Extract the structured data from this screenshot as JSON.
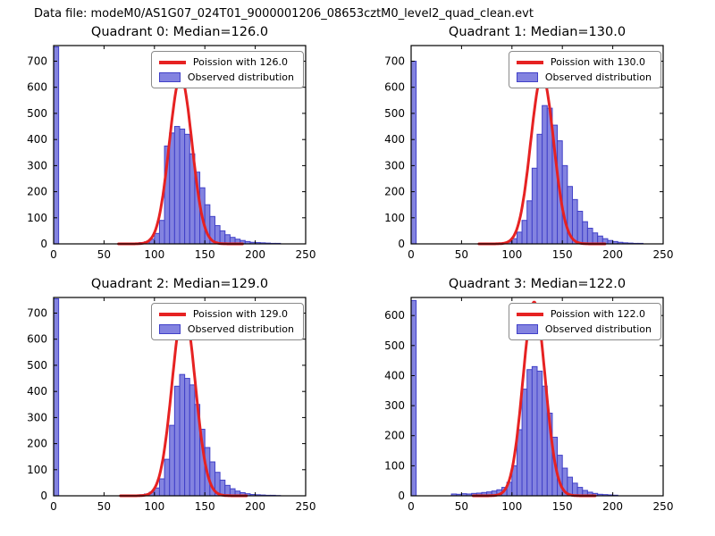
{
  "figure_title": "Data file: modeM0/AS1G07_024T01_9000001206_08653cztM0_level2_quad_clean.evt",
  "colors": {
    "bar_fill": "#8383e0",
    "bar_edge": "#4040c8",
    "curve": "#e62222",
    "axis": "#000000"
  },
  "chart_data": {
    "type": "bar",
    "note": "2x2 grid of histograms (Observed distribution) with Poisson fit curve overlaid",
    "x_ticks": [
      0,
      50,
      100,
      150,
      200,
      250
    ],
    "subplots": [
      {
        "title": "Quadrant 0: Median=126.0",
        "median": 126.0,
        "legend": {
          "line": "Poission with 126.0",
          "patch": "Observed distribution"
        },
        "xlim": [
          0,
          250
        ],
        "ylim": [
          0,
          760
        ],
        "y_ticks": [
          0,
          100,
          200,
          300,
          400,
          500,
          600,
          700
        ],
        "bin_width": 5,
        "bars": [
          [
            0,
            755
          ],
          [
            75,
            2
          ],
          [
            80,
            3
          ],
          [
            85,
            5
          ],
          [
            90,
            8
          ],
          [
            95,
            18
          ],
          [
            100,
            40
          ],
          [
            105,
            90
          ],
          [
            110,
            375
          ],
          [
            115,
            425
          ],
          [
            120,
            450
          ],
          [
            125,
            440
          ],
          [
            130,
            420
          ],
          [
            135,
            345
          ],
          [
            140,
            275
          ],
          [
            145,
            215
          ],
          [
            150,
            150
          ],
          [
            155,
            105
          ],
          [
            160,
            70
          ],
          [
            165,
            50
          ],
          [
            170,
            35
          ],
          [
            175,
            25
          ],
          [
            180,
            18
          ],
          [
            185,
            13
          ],
          [
            190,
            9
          ],
          [
            195,
            6
          ],
          [
            200,
            5
          ],
          [
            205,
            4
          ],
          [
            210,
            3
          ],
          [
            215,
            2
          ],
          [
            220,
            2
          ]
        ],
        "curve": {
          "mu": 126,
          "sigma": 11.2,
          "peak": 640
        }
      },
      {
        "title": "Quadrant 1: Median=130.0",
        "median": 130.0,
        "legend": {
          "line": "Poission with 130.0",
          "patch": "Observed distribution"
        },
        "xlim": [
          0,
          250
        ],
        "ylim": [
          0,
          760
        ],
        "y_ticks": [
          0,
          100,
          200,
          300,
          400,
          500,
          600,
          700
        ],
        "bin_width": 5,
        "bars": [
          [
            0,
            700
          ],
          [
            90,
            4
          ],
          [
            95,
            8
          ],
          [
            100,
            20
          ],
          [
            105,
            45
          ],
          [
            110,
            90
          ],
          [
            115,
            165
          ],
          [
            120,
            290
          ],
          [
            125,
            420
          ],
          [
            130,
            530
          ],
          [
            135,
            520
          ],
          [
            140,
            455
          ],
          [
            145,
            395
          ],
          [
            150,
            300
          ],
          [
            155,
            220
          ],
          [
            160,
            170
          ],
          [
            165,
            125
          ],
          [
            170,
            85
          ],
          [
            175,
            60
          ],
          [
            180,
            42
          ],
          [
            185,
            30
          ],
          [
            190,
            20
          ],
          [
            195,
            13
          ],
          [
            200,
            9
          ],
          [
            205,
            6
          ],
          [
            210,
            4
          ],
          [
            215,
            3
          ],
          [
            220,
            2
          ],
          [
            225,
            2
          ]
        ],
        "curve": {
          "mu": 130,
          "sigma": 11.4,
          "peak": 645
        }
      },
      {
        "title": "Quadrant 2: Median=129.0",
        "median": 129.0,
        "legend": {
          "line": "Poission with 129.0",
          "patch": "Observed distribution"
        },
        "xlim": [
          0,
          250
        ],
        "ylim": [
          0,
          760
        ],
        "y_ticks": [
          0,
          100,
          200,
          300,
          400,
          500,
          600,
          700
        ],
        "bin_width": 5,
        "bars": [
          [
            0,
            755
          ],
          [
            80,
            2
          ],
          [
            85,
            4
          ],
          [
            90,
            7
          ],
          [
            95,
            14
          ],
          [
            100,
            30
          ],
          [
            105,
            65
          ],
          [
            110,
            140
          ],
          [
            115,
            270
          ],
          [
            120,
            420
          ],
          [
            125,
            465
          ],
          [
            130,
            450
          ],
          [
            135,
            425
          ],
          [
            140,
            350
          ],
          [
            145,
            255
          ],
          [
            150,
            185
          ],
          [
            155,
            130
          ],
          [
            160,
            90
          ],
          [
            165,
            60
          ],
          [
            170,
            40
          ],
          [
            175,
            27
          ],
          [
            180,
            18
          ],
          [
            185,
            12
          ],
          [
            190,
            8
          ],
          [
            195,
            5
          ],
          [
            200,
            4
          ],
          [
            205,
            3
          ],
          [
            210,
            2
          ],
          [
            215,
            2
          ],
          [
            220,
            1
          ]
        ],
        "curve": {
          "mu": 129,
          "sigma": 11.4,
          "peak": 720
        }
      },
      {
        "title": "Quadrant 3: Median=122.0",
        "median": 122.0,
        "legend": {
          "line": "Poission with 122.0",
          "patch": "Observed distribution"
        },
        "xlim": [
          0,
          250
        ],
        "ylim": [
          0,
          660
        ],
        "y_ticks": [
          0,
          100,
          200,
          300,
          400,
          500,
          600
        ],
        "bin_width": 5,
        "bars": [
          [
            0,
            650
          ],
          [
            40,
            6
          ],
          [
            45,
            5
          ],
          [
            50,
            7
          ],
          [
            55,
            6
          ],
          [
            60,
            8
          ],
          [
            65,
            9
          ],
          [
            70,
            11
          ],
          [
            75,
            13
          ],
          [
            80,
            16
          ],
          [
            85,
            20
          ],
          [
            90,
            28
          ],
          [
            95,
            45
          ],
          [
            100,
            100
          ],
          [
            105,
            220
          ],
          [
            110,
            355
          ],
          [
            115,
            420
          ],
          [
            120,
            430
          ],
          [
            125,
            415
          ],
          [
            130,
            365
          ],
          [
            135,
            275
          ],
          [
            140,
            195
          ],
          [
            145,
            135
          ],
          [
            150,
            92
          ],
          [
            155,
            62
          ],
          [
            160,
            42
          ],
          [
            165,
            28
          ],
          [
            170,
            18
          ],
          [
            175,
            12
          ],
          [
            180,
            8
          ],
          [
            185,
            5
          ],
          [
            190,
            4
          ],
          [
            195,
            3
          ],
          [
            200,
            2
          ]
        ],
        "curve": {
          "mu": 122,
          "sigma": 11.0,
          "peak": 645
        }
      }
    ]
  }
}
